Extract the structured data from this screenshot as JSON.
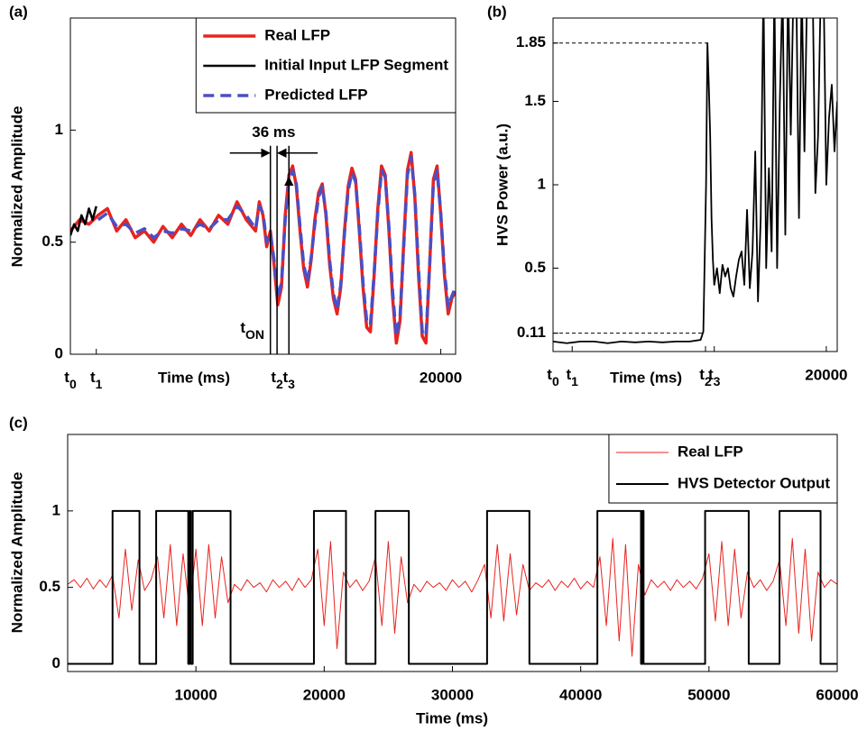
{
  "chart_data": [
    {
      "type": "line",
      "panel_label": "(a)",
      "xlabel": "Time (ms)",
      "ylabel": "Normalized Amplitude",
      "xlim": [
        18000,
        20080
      ],
      "ylim": [
        0,
        1.5
      ],
      "xticks": [
        {
          "value": 18000,
          "label": "t0"
        },
        {
          "value": 18140,
          "label": "t1"
        },
        {
          "value": 19116,
          "label": "t2"
        },
        {
          "value": 19180,
          "label": "t3"
        },
        20000
      ],
      "yticks": [
        0,
        0.5,
        1
      ],
      "legend": "upper right",
      "vlines": [
        {
          "value": 19080,
          "label": "tON"
        },
        {
          "value": 19116
        },
        {
          "value": 19180
        }
      ],
      "interval_label": "36 ms",
      "series": [
        {
          "name": "Real LFP",
          "color": "#e8231f",
          "linestyle": "solid",
          "x": [
            18000,
            18050,
            18100,
            18150,
            18200,
            18250,
            18300,
            18350,
            18400,
            18450,
            18500,
            18550,
            18600,
            18650,
            18700,
            18750,
            18800,
            18850,
            18900,
            18950,
            19000,
            19020,
            19040,
            19060,
            19080,
            19100,
            19120,
            19140,
            19160,
            19180,
            19200,
            19220,
            19240,
            19260,
            19280,
            19300,
            19320,
            19340,
            19360,
            19380,
            19400,
            19420,
            19440,
            19460,
            19480,
            19500,
            19520,
            19540,
            19560,
            19580,
            19600,
            19620,
            19640,
            19660,
            19680,
            19700,
            19720,
            19740,
            19760,
            19780,
            19800,
            19820,
            19840,
            19860,
            19880,
            19900,
            19920,
            19940,
            19960,
            19980,
            20000,
            20020,
            20040,
            20060,
            20080
          ],
          "values": [
            0.55,
            0.6,
            0.58,
            0.62,
            0.65,
            0.55,
            0.6,
            0.52,
            0.55,
            0.5,
            0.57,
            0.52,
            0.58,
            0.53,
            0.6,
            0.55,
            0.62,
            0.58,
            0.68,
            0.6,
            0.55,
            0.68,
            0.62,
            0.48,
            0.55,
            0.4,
            0.22,
            0.3,
            0.62,
            0.8,
            0.84,
            0.75,
            0.55,
            0.38,
            0.3,
            0.42,
            0.6,
            0.72,
            0.76,
            0.62,
            0.4,
            0.25,
            0.18,
            0.3,
            0.55,
            0.75,
            0.83,
            0.78,
            0.55,
            0.3,
            0.12,
            0.1,
            0.35,
            0.65,
            0.84,
            0.8,
            0.55,
            0.25,
            0.05,
            0.15,
            0.5,
            0.82,
            0.9,
            0.7,
            0.35,
            0.08,
            0.05,
            0.4,
            0.78,
            0.84,
            0.62,
            0.35,
            0.18,
            0.25,
            0.28
          ]
        },
        {
          "name": "Initial Input LFP Segment",
          "color": "#000000",
          "linestyle": "solid",
          "x": [
            18000,
            18020,
            18040,
            18060,
            18080,
            18100,
            18120,
            18140
          ],
          "values": [
            0.53,
            0.58,
            0.55,
            0.62,
            0.58,
            0.65,
            0.6,
            0.66
          ]
        },
        {
          "name": "Predicted LFP",
          "color": "#4a4fc4",
          "linestyle": "dashed",
          "x": [
            18150,
            18200,
            18250,
            18300,
            18350,
            18400,
            18450,
            18500,
            18550,
            18600,
            18650,
            18700,
            18750,
            18800,
            18850,
            18900,
            18950,
            19000,
            19020,
            19040,
            19060,
            19080,
            19100,
            19120,
            19140,
            19160,
            19180,
            19200,
            19220,
            19240,
            19260,
            19280,
            19300,
            19320,
            19340,
            19360,
            19380,
            19400,
            19420,
            19440,
            19460,
            19480,
            19500,
            19520,
            19540,
            19560,
            19580,
            19600,
            19620,
            19640,
            19660,
            19680,
            19700,
            19720,
            19740,
            19760,
            19780,
            19800,
            19820,
            19840,
            19860,
            19880,
            19900,
            19920,
            19940,
            19960,
            19980,
            20000,
            20020,
            20040,
            20060,
            20080
          ],
          "values": [
            0.6,
            0.63,
            0.57,
            0.58,
            0.54,
            0.56,
            0.52,
            0.55,
            0.54,
            0.56,
            0.55,
            0.58,
            0.56,
            0.6,
            0.6,
            0.66,
            0.62,
            0.56,
            0.66,
            0.63,
            0.5,
            0.54,
            0.42,
            0.25,
            0.32,
            0.6,
            0.78,
            0.82,
            0.76,
            0.57,
            0.4,
            0.32,
            0.43,
            0.58,
            0.7,
            0.75,
            0.63,
            0.42,
            0.27,
            0.2,
            0.31,
            0.54,
            0.73,
            0.81,
            0.77,
            0.57,
            0.32,
            0.15,
            0.13,
            0.36,
            0.63,
            0.82,
            0.79,
            0.57,
            0.28,
            0.08,
            0.17,
            0.48,
            0.8,
            0.88,
            0.71,
            0.38,
            0.1,
            0.08,
            0.4,
            0.76,
            0.82,
            0.63,
            0.37,
            0.21,
            0.26,
            0.3
          ]
        }
      ]
    },
    {
      "type": "line",
      "panel_label": "(b)",
      "xlabel": "Time (ms)",
      "ylabel": "HVS Power (a.u.)",
      "xlim": [
        18000,
        20080
      ],
      "ylim": [
        0,
        2
      ],
      "xticks": [
        {
          "value": 18000,
          "label": "t0"
        },
        {
          "value": 18140,
          "label": "t1"
        },
        {
          "value": 19116,
          "label": "t2"
        },
        {
          "value": 19180,
          "label": "t3"
        },
        20000
      ],
      "yticks": [
        0.11,
        0.5,
        1,
        1.5,
        1.85
      ],
      "thresholds": [
        {
          "y": 0.11,
          "x_end": 19110
        },
        {
          "y": 1.85,
          "x_end": 19130
        }
      ],
      "series": [
        {
          "color": "#000000",
          "linestyle": "solid",
          "x": [
            18000,
            18100,
            18200,
            18300,
            18400,
            18500,
            18600,
            18700,
            18800,
            18900,
            19000,
            19080,
            19100,
            19120,
            19130,
            19140,
            19150,
            19160,
            19170,
            19180,
            19200,
            19220,
            19240,
            19260,
            19280,
            19300,
            19320,
            19340,
            19360,
            19380,
            19400,
            19420,
            19440,
            19460,
            19480,
            19500,
            19520,
            19540,
            19560,
            19580,
            19600,
            19620,
            19640,
            19660,
            19680,
            19700,
            19720,
            19740,
            19760,
            19780,
            19800,
            19820,
            19840,
            19860,
            19880,
            19900,
            19920,
            19940,
            19960,
            19980,
            20000,
            20020,
            20040,
            20060,
            20080
          ],
          "values": [
            0.06,
            0.05,
            0.06,
            0.06,
            0.05,
            0.06,
            0.055,
            0.06,
            0.055,
            0.06,
            0.06,
            0.07,
            0.12,
            1.0,
            1.85,
            1.6,
            1.3,
            0.8,
            0.55,
            0.4,
            0.5,
            0.35,
            0.52,
            0.45,
            0.5,
            0.38,
            0.33,
            0.45,
            0.55,
            0.6,
            0.4,
            0.85,
            0.38,
            0.6,
            1.2,
            0.3,
            0.8,
            2.2,
            0.5,
            1.1,
            0.6,
            2.2,
            0.5,
            1.5,
            2.2,
            0.7,
            2.2,
            1.3,
            2.2,
            2.2,
            0.8,
            2.2,
            1.2,
            2.2,
            2.2,
            2.2,
            0.95,
            1.3,
            2.2,
            2.2,
            1.0,
            1.4,
            1.6,
            1.2,
            1.5
          ]
        }
      ]
    },
    {
      "type": "line",
      "panel_label": "(c)",
      "xlabel": "Time (ms)",
      "ylabel": "Normalized Amplitude",
      "xlim": [
        0,
        60000
      ],
      "ylim": [
        -0.05,
        1.5
      ],
      "xticks": [
        10000,
        20000,
        30000,
        40000,
        50000,
        60000
      ],
      "yticks": [
        0,
        0.5,
        1
      ],
      "legend": "upper right",
      "series": [
        {
          "name": "Real LFP",
          "color": "#e8231f",
          "linestyle": "solid",
          "x": [
            0,
            500,
            1000,
            1500,
            2000,
            2500,
            3000,
            3500,
            4000,
            4500,
            5000,
            5500,
            6000,
            6500,
            7000,
            7500,
            8000,
            8500,
            9000,
            9500,
            10000,
            10500,
            11000,
            11500,
            12000,
            12500,
            13000,
            13500,
            14000,
            14500,
            15000,
            15500,
            16000,
            16500,
            17000,
            17500,
            18000,
            18500,
            19000,
            19500,
            20000,
            20500,
            21000,
            21500,
            22000,
            22500,
            23000,
            23500,
            24000,
            24500,
            25000,
            25500,
            26000,
            26500,
            27000,
            27500,
            28000,
            28500,
            29000,
            29500,
            30000,
            30500,
            31000,
            31500,
            32000,
            32500,
            33000,
            33500,
            34000,
            34500,
            35000,
            35500,
            36000,
            36500,
            37000,
            37500,
            38000,
            38500,
            39000,
            39500,
            40000,
            40500,
            41000,
            41500,
            42000,
            42500,
            43000,
            43500,
            44000,
            44500,
            45000,
            45500,
            46000,
            46500,
            47000,
            47500,
            48000,
            48500,
            49000,
            49500,
            50000,
            50500,
            51000,
            51500,
            52000,
            52500,
            53000,
            53500,
            54000,
            54500,
            55000,
            55500,
            56000,
            56500,
            57000,
            57500,
            58000,
            58500,
            59000,
            59500,
            60000
          ],
          "values": [
            0.52,
            0.55,
            0.5,
            0.56,
            0.49,
            0.55,
            0.5,
            0.58,
            0.3,
            0.75,
            0.35,
            0.68,
            0.48,
            0.55,
            0.7,
            0.3,
            0.78,
            0.25,
            0.72,
            0.35,
            0.75,
            0.25,
            0.78,
            0.3,
            0.7,
            0.4,
            0.52,
            0.48,
            0.55,
            0.5,
            0.53,
            0.47,
            0.55,
            0.5,
            0.54,
            0.48,
            0.56,
            0.5,
            0.55,
            0.75,
            0.25,
            0.8,
            0.1,
            0.6,
            0.5,
            0.55,
            0.48,
            0.54,
            0.7,
            0.25,
            0.8,
            0.2,
            0.7,
            0.4,
            0.52,
            0.47,
            0.54,
            0.5,
            0.53,
            0.48,
            0.55,
            0.5,
            0.54,
            0.47,
            0.55,
            0.65,
            0.3,
            0.78,
            0.28,
            0.72,
            0.32,
            0.65,
            0.48,
            0.53,
            0.5,
            0.55,
            0.48,
            0.54,
            0.5,
            0.56,
            0.49,
            0.54,
            0.5,
            0.7,
            0.25,
            0.82,
            0.15,
            0.78,
            0.05,
            0.65,
            0.45,
            0.55,
            0.5,
            0.54,
            0.48,
            0.55,
            0.5,
            0.54,
            0.49,
            0.56,
            0.72,
            0.28,
            0.8,
            0.25,
            0.75,
            0.3,
            0.6,
            0.5,
            0.55,
            0.48,
            0.54,
            0.68,
            0.25,
            0.82,
            0.2,
            0.75,
            0.15,
            0.6,
            0.5,
            0.55,
            0.52
          ]
        },
        {
          "name": "HVS Detector Output",
          "color": "#000000",
          "linestyle": "solid",
          "x": [
            0,
            3500,
            3500,
            5600,
            5600,
            6900,
            6900,
            9400,
            9400,
            9500,
            9500,
            9600,
            9600,
            9750,
            9750,
            12700,
            12700,
            19200,
            19200,
            21700,
            21700,
            24000,
            24000,
            26600,
            26600,
            32700,
            32700,
            36000,
            36000,
            41300,
            41300,
            44700,
            44700,
            44800,
            44800,
            44900,
            44900,
            49700,
            49700,
            53100,
            53100,
            55500,
            55500,
            58700,
            58700,
            60000
          ],
          "values": [
            0,
            0,
            1,
            1,
            0,
            0,
            1,
            1,
            0,
            0,
            1,
            1,
            0,
            0,
            1,
            1,
            0,
            0,
            1,
            1,
            0,
            0,
            1,
            1,
            0,
            0,
            1,
            1,
            0,
            0,
            1,
            1,
            0,
            0,
            1,
            1,
            0,
            0,
            1,
            1,
            0,
            0,
            1,
            1,
            0,
            0
          ]
        }
      ]
    }
  ]
}
